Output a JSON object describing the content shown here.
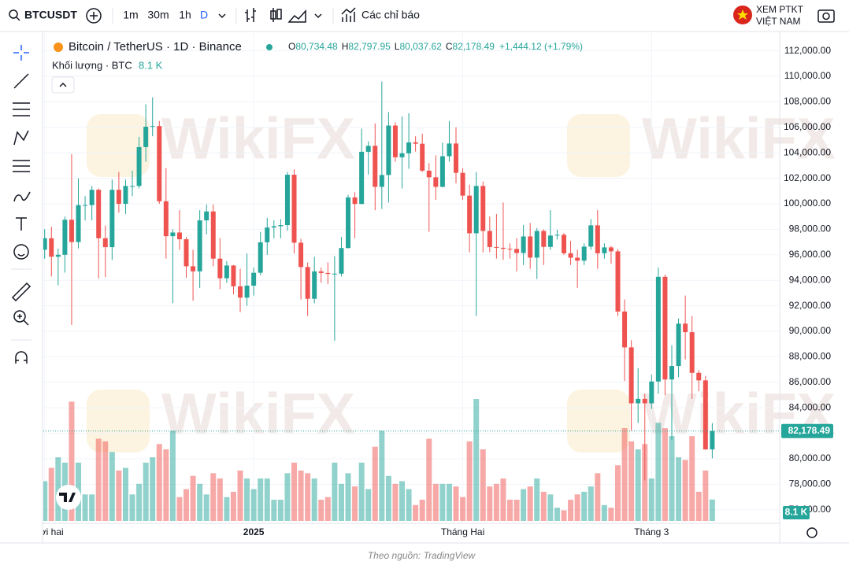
{
  "toolbar": {
    "symbol": "BTCUSDT",
    "intervals": [
      "1m",
      "30m",
      "1h",
      "D"
    ],
    "indicators": "Các chỉ báo",
    "promo": [
      "XEM PTKT",
      "VIỆT NAM"
    ]
  },
  "legend": {
    "title": "Bitcoin / TetherUS · 1D · Binance",
    "ohlc": [
      {
        "key": "O",
        "value": "80,734.48"
      },
      {
        "key": "H",
        "value": "82,797.95"
      },
      {
        "key": "L",
        "value": "80,037.62"
      },
      {
        "key": "C",
        "value": "82,178.49"
      }
    ],
    "change": "+1,444.12 (+1.79%)",
    "volume_label": "Khối lượng · BTC",
    "volume_value": "8.1 K"
  },
  "watermark": "WikiFX",
  "footer": "Theo nguồn: TradingView",
  "chart_data": {
    "type": "candlestick",
    "open": [
      96400,
      97300,
      95850,
      96000,
      98750,
      97000,
      99900,
      99900,
      101100,
      97300,
      96600,
      101100,
      100000,
      101400,
      101400,
      104450,
      106050,
      106100,
      100200,
      97460,
      97750,
      97220,
      95100,
      94700,
      98700,
      99400,
      95700,
      94160,
      95160,
      93530,
      92640,
      93580,
      94590,
      96980,
      98140,
      98240,
      98330,
      102280,
      96950,
      95040,
      92550,
      94700,
      94570,
      94500,
      94520,
      96530,
      100500,
      99990,
      104080,
      104550,
      101330,
      102260,
      106140,
      103650,
      103960,
      104820,
      104710,
      102600,
      102080,
      101330,
      103730,
      104730,
      102430,
      100640,
      97690,
      101400,
      97870,
      96610,
      96550,
      96470,
      96460,
      96140,
      97440,
      95780,
      97870,
      96620,
      97510,
      97570,
      96120,
      95770,
      95540,
      96640,
      98310,
      96120,
      96580,
      96270,
      91550,
      88740,
      84350,
      84700,
      84350,
      86060,
      94270,
      86220,
      87280,
      90600,
      89930,
      86740,
      86150,
      80734.48
    ],
    "high": [
      98000,
      98200,
      96500,
      99000,
      103900,
      102000,
      100600,
      101400,
      101200,
      98300,
      101900,
      102500,
      101900,
      102600,
      105250,
      107800,
      108350,
      106500,
      102800,
      98000,
      99500,
      97400,
      96400,
      99500,
      99950,
      99950,
      97300,
      95500,
      95200,
      94900,
      96100,
      95000,
      97800,
      98900,
      98700,
      98800,
      102500,
      102700,
      97250,
      95400,
      95850,
      95000,
      95400,
      95900,
      97400,
      100700,
      100900,
      105900,
      104900,
      106300,
      109600,
      107200,
      106400,
      106850,
      107100,
      105300,
      105500,
      103200,
      103800,
      104800,
      106500,
      106000,
      102800,
      101500,
      102500,
      101750,
      99000,
      99200,
      100100,
      96900,
      97300,
      98350,
      98500,
      98100,
      98000,
      99500,
      97970,
      97700,
      97100,
      96400,
      96900,
      98800,
      99500,
      96900,
      96700,
      96450,
      92500,
      89300,
      87100,
      85100,
      86600,
      95000,
      94450,
      88900,
      91000,
      92800,
      91200,
      86950,
      86500,
      82797.95
    ],
    "low": [
      95700,
      94300,
      93600,
      94600,
      90500,
      96500,
      98700,
      98700,
      94150,
      94250,
      95600,
      99300,
      99200,
      100600,
      101200,
      103300,
      105300,
      100000,
      95700,
      92200,
      96400,
      94200,
      92400,
      93400,
      97600,
      95100,
      93300,
      93800,
      92900,
      91500,
      92000,
      92800,
      94400,
      96000,
      97300,
      97300,
      97900,
      96100,
      92500,
      91200,
      92200,
      93800,
      93700,
      89250,
      94300,
      96500,
      97300,
      99950,
      102300,
      99500,
      99600,
      100100,
      103300,
      101200,
      102750,
      104100,
      102500,
      97800,
      100300,
      101300,
      103300,
      101600,
      100300,
      96200,
      91200,
      96200,
      96200,
      95700,
      95600,
      95700,
      94700,
      95200,
      94900,
      94100,
      95200,
      96400,
      97200,
      96000,
      95200,
      93400,
      95200,
      96400,
      94900,
      95700,
      95300,
      91200,
      86100,
      82200,
      82800,
      78300,
      83900,
      85100,
      85000,
      81500,
      86400,
      87800,
      84700,
      85300,
      80700,
      80037.62
    ],
    "close": [
      97300,
      95850,
      96000,
      98750,
      97000,
      99900,
      99900,
      101100,
      97300,
      96600,
      101100,
      100000,
      101400,
      101400,
      104450,
      106050,
      106100,
      100200,
      97460,
      97750,
      97220,
      95100,
      94700,
      98700,
      99400,
      95700,
      94160,
      95160,
      93530,
      92640,
      93580,
      94590,
      96980,
      98140,
      98240,
      98330,
      102280,
      96950,
      95040,
      92550,
      94700,
      94570,
      94500,
      94520,
      96530,
      100500,
      99990,
      104080,
      104550,
      101330,
      102260,
      106140,
      103650,
      103960,
      104820,
      104710,
      102600,
      102080,
      101330,
      103730,
      104730,
      102430,
      100640,
      97690,
      101400,
      97870,
      96610,
      96550,
      96470,
      96460,
      96140,
      97440,
      95780,
      97870,
      96620,
      97510,
      97570,
      96120,
      95770,
      95540,
      96640,
      98310,
      96120,
      96580,
      96270,
      91550,
      88740,
      84350,
      84700,
      84350,
      86060,
      94270,
      86220,
      87280,
      90600,
      89930,
      86740,
      86150,
      80734,
      82178.49
    ],
    "volume": [
      15000,
      20000,
      24000,
      22000,
      45000,
      22000,
      10000,
      10000,
      31000,
      30000,
      26000,
      19000,
      20000,
      10000,
      14000,
      22000,
      24000,
      29000,
      27000,
      34000,
      9000,
      12000,
      17000,
      14000,
      10000,
      18000,
      16000,
      9000,
      11000,
      19000,
      16000,
      12000,
      16000,
      16000,
      8000,
      8000,
      18000,
      22000,
      19000,
      18000,
      16000,
      8000,
      9000,
      22000,
      14000,
      18000,
      13000,
      22000,
      12000,
      28000,
      34000,
      17000,
      14000,
      15000,
      12000,
      6000,
      8000,
      31000,
      14000,
      14000,
      14000,
      13000,
      9000,
      30000,
      46000,
      27000,
      13000,
      14000,
      16000,
      8000,
      8000,
      12000,
      13000,
      16000,
      11000,
      10000,
      5000,
      4000,
      8000,
      10000,
      11000,
      13000,
      18000,
      6000,
      5000,
      21000,
      35000,
      30000,
      27000,
      29000,
      16000,
      37000,
      35000,
      32000,
      24000,
      23000,
      32000,
      11000,
      19000,
      8100
    ],
    "up_color": "#26a69a",
    "down_color": "#ef5350",
    "ylim": [
      74938,
      113395
    ],
    "yticks": [
      {
        "value": 76000,
        "label": "76,000.00"
      },
      {
        "value": 78000,
        "label": "78,000.00"
      },
      {
        "value": 80000,
        "label": "80,000.00"
      },
      {
        "value": 82000,
        "label": "82,000.00"
      },
      {
        "value": 84000,
        "label": "84,000.00"
      },
      {
        "value": 86000,
        "label": "86,000.00"
      },
      {
        "value": 88000,
        "label": "88,000.00"
      },
      {
        "value": 90000,
        "label": "90,000.00"
      },
      {
        "value": 92000,
        "label": "92,000.00"
      },
      {
        "value": 94000,
        "label": "94,000.00"
      },
      {
        "value": 96000,
        "label": "96,000.00"
      },
      {
        "value": 98000,
        "label": "98,000.00"
      },
      {
        "value": 100000,
        "label": "100,000.00"
      },
      {
        "value": 102000,
        "label": "102,000.00"
      },
      {
        "value": 104000,
        "label": "104,000.00"
      },
      {
        "value": 106000,
        "label": "106,000.00"
      },
      {
        "value": 108000,
        "label": "108,000.00"
      },
      {
        "value": 110000,
        "label": "110,000.00"
      },
      {
        "value": 112000,
        "label": "112,000.00"
      }
    ],
    "xlim": [
      -0.2,
      109
    ],
    "xticks": [
      {
        "value": 0,
        "label": "Mười hai"
      },
      {
        "value": 31,
        "label": "2025"
      },
      {
        "value": 62,
        "label": "Tháng Hai"
      },
      {
        "value": 90,
        "label": "Tháng 3"
      }
    ],
    "last_price": {
      "value": 82178.49,
      "label": "82,178.49"
    },
    "last_volume_label": "8.1 K"
  }
}
